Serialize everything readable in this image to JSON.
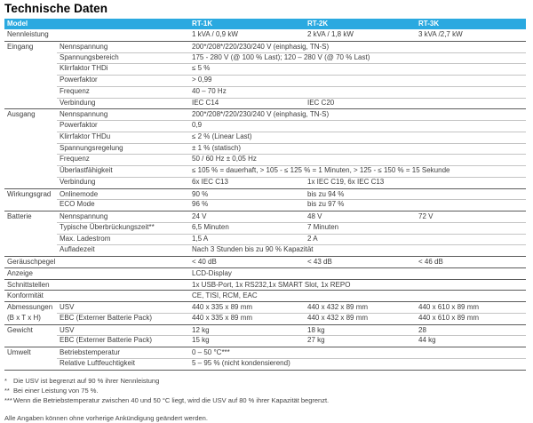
{
  "page_title": "Technische Daten",
  "colors": {
    "header_bg": "#2aa9e0",
    "header_text": "#ffffff",
    "section_line": "#5a5a5a",
    "sub_line": "#c4c4c4",
    "text": "#3c3c3c"
  },
  "table": {
    "header": {
      "model": "Model",
      "columns": [
        "RT-1K",
        "RT-2K",
        "RT-3K"
      ]
    },
    "rows": [
      {
        "group": "Nennleistung",
        "wide": true,
        "sep": "none",
        "cells": [
          {
            "text": "1 kVA / 0,9 kW",
            "span": 1
          },
          {
            "text": "2 kVA / 1,8 kW",
            "span": 1
          },
          {
            "text": "3 kVA /2,7 kW",
            "span": 1
          }
        ]
      },
      {
        "group": "Eingang",
        "label": "Nennspannung",
        "sep": "section",
        "cells": [
          {
            "text": "200*/208*/220/230/240 V (einphasig, TN-S)",
            "span": 3
          }
        ]
      },
      {
        "group": "",
        "label": "Spannungsbereich",
        "sep": "sub",
        "cells": [
          {
            "text": "175 - 280 V (@ 100 % Last); 120 – 280 V (@ 70 % Last)",
            "span": 3
          }
        ]
      },
      {
        "group": "",
        "label": "Klirrfaktor THDi",
        "sep": "sub",
        "cells": [
          {
            "text": "≤ 5 %",
            "span": 3
          }
        ]
      },
      {
        "group": "",
        "label": "Powerfaktor",
        "sep": "sub",
        "cells": [
          {
            "text": "> 0,99",
            "span": 3
          }
        ]
      },
      {
        "group": "",
        "label": "Frequenz",
        "sep": "sub",
        "cells": [
          {
            "text": "40 – 70 Hz",
            "span": 3
          }
        ]
      },
      {
        "group": "",
        "label": "Verbindung",
        "sep": "sub",
        "cells": [
          {
            "text": "IEC C14",
            "span": 1
          },
          {
            "text": "IEC C20",
            "span": 2
          }
        ]
      },
      {
        "group": "Ausgang",
        "label": "Nennspannung",
        "sep": "section",
        "cells": [
          {
            "text": "200*/208*/220/230/240 V (einphasig, TN-S)",
            "span": 3
          }
        ]
      },
      {
        "group": "",
        "label": "Powerfaktor",
        "sep": "sub",
        "cells": [
          {
            "text": "0,9",
            "span": 3
          }
        ]
      },
      {
        "group": "",
        "label": "Klirrfaktor THDu",
        "sep": "sub",
        "cells": [
          {
            "text": "≤ 2 % (Linear Last)",
            "span": 3
          }
        ]
      },
      {
        "group": "",
        "label": "Spannungsregelung",
        "sep": "sub",
        "cells": [
          {
            "text": "± 1 % (statisch)",
            "span": 3
          }
        ]
      },
      {
        "group": "",
        "label": "Frequenz",
        "sep": "sub",
        "cells": [
          {
            "text": "50 / 60 Hz ± 0,05 Hz",
            "span": 3
          }
        ]
      },
      {
        "group": "",
        "label": "Überlastfähigkeit",
        "sep": "sub",
        "cells": [
          {
            "text": "≤ 105 % = dauerhaft, > 105 - ≤ 125 % = 1 Minuten, > 125 - ≤ 150 % = 15 Sekunde",
            "span": 3
          }
        ]
      },
      {
        "group": "",
        "label": "Verbindung",
        "sep": "sub",
        "cells": [
          {
            "text": "6x IEC C13",
            "span": 1
          },
          {
            "text": "1x IEC C19, 6x IEC C13",
            "span": 2
          }
        ]
      },
      {
        "group": "Wirkungsgrad",
        "label": "Onlinemode",
        "sep": "section",
        "cells": [
          {
            "text": "90 %",
            "span": 1
          },
          {
            "text": "bis zu 94 %",
            "span": 2
          }
        ]
      },
      {
        "group": "",
        "label": "ECO Mode",
        "sep": "sub",
        "cells": [
          {
            "text": "96 %",
            "span": 1
          },
          {
            "text": "bis zu 97 %",
            "span": 2
          }
        ]
      },
      {
        "group": "Batterie",
        "label": "Nennspannung",
        "sep": "section",
        "cells": [
          {
            "text": "24 V",
            "span": 1
          },
          {
            "text": "48 V",
            "span": 1
          },
          {
            "text": "72 V",
            "span": 1
          }
        ]
      },
      {
        "group": "",
        "label": "Typische Überbrückungszeit**",
        "sep": "sub",
        "cells": [
          {
            "text": "6,5 Minuten",
            "span": 1
          },
          {
            "text": "7 Minuten",
            "span": 2
          }
        ]
      },
      {
        "group": "",
        "label": "Max. Ladestrom",
        "sep": "sub",
        "cells": [
          {
            "text": "1,5 A",
            "span": 1
          },
          {
            "text": "2 A",
            "span": 2
          }
        ]
      },
      {
        "group": "",
        "label": "Aufladezeit",
        "sep": "sub",
        "cells": [
          {
            "text": "Nach 3 Stunden bis zu 90 % Kapazität",
            "span": 3
          }
        ]
      },
      {
        "group": "Geräuschpegel",
        "wide": true,
        "sep": "section",
        "cells": [
          {
            "text": "< 40 dB",
            "span": 1
          },
          {
            "text": "< 43 dB",
            "span": 1
          },
          {
            "text": "< 46 dB",
            "span": 1
          }
        ]
      },
      {
        "group": "Anzeige",
        "wide": true,
        "sep": "section",
        "cells": [
          {
            "text": "LCD-Display",
            "span": 3
          }
        ]
      },
      {
        "group": "Schnittstellen",
        "wide": true,
        "sep": "section",
        "cells": [
          {
            "text": "1x USB-Port, 1x RS232,1x SMART Slot, 1x REPO",
            "span": 3
          }
        ]
      },
      {
        "group": "Konformität",
        "wide": true,
        "sep": "section",
        "cells": [
          {
            "text": "CE, TISI, RCM, EAC",
            "span": 3
          }
        ]
      },
      {
        "group": "Abmessungen",
        "label": "USV",
        "sep": "section",
        "cells": [
          {
            "text": "440 x 335 x 89 mm",
            "span": 1
          },
          {
            "text": "440 x 432 x 89 mm",
            "span": 1
          },
          {
            "text": "440 x 610 x 89 mm",
            "span": 1
          }
        ]
      },
      {
        "group": "(B x T x H)",
        "label": "EBC (Externer Batterie Pack)",
        "sep": "sub",
        "cells": [
          {
            "text": "440 x 335 x 89 mm",
            "span": 1
          },
          {
            "text": "440 x 432 x 89 mm",
            "span": 1
          },
          {
            "text": "440 x 610 x 89 mm",
            "span": 1
          }
        ]
      },
      {
        "group": "Gewicht",
        "label": "USV",
        "sep": "section",
        "cells": [
          {
            "text": "12 kg",
            "span": 1
          },
          {
            "text": "18 kg",
            "span": 1
          },
          {
            "text": "28",
            "span": 1
          }
        ]
      },
      {
        "group": "",
        "label": "EBC (Externer Batterie Pack)",
        "sep": "sub",
        "cells": [
          {
            "text": "15 kg",
            "span": 1
          },
          {
            "text": "27 kg",
            "span": 1
          },
          {
            "text": "44 kg",
            "span": 1
          }
        ]
      },
      {
        "group": "Umwelt",
        "label": "Betriebstemperatur",
        "sep": "section",
        "cells": [
          {
            "text": "0 – 50 °C***",
            "span": 3
          }
        ]
      },
      {
        "group": "",
        "label": "Relative Luftfeuchtigkeit",
        "sep": "sub",
        "cells": [
          {
            "text": "5 – 95 % (nicht kondensierend)",
            "span": 3
          }
        ]
      }
    ]
  },
  "footnotes": [
    {
      "marker": "*",
      "text": "Die USV ist begrenzt auf 90 % ihrer Nennleistung"
    },
    {
      "marker": "**",
      "text": "Bei einer Leistung von 75 %."
    },
    {
      "marker": "***",
      "text": "Wenn die Betriebstemperatur zwischen 40 und 50 °C liegt, wird die USV auf 80 % ihrer Kapazität begrenzt."
    }
  ],
  "disclaimer": "Alle Angaben können ohne vorherige Ankündigung geändert werden."
}
